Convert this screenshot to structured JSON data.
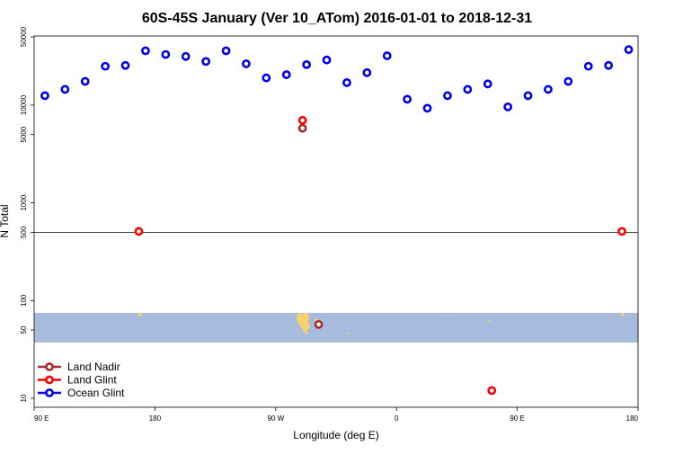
{
  "chart_data": {
    "type": "scatter",
    "title": "60S-45S January (Ver 10_ATom)   2016-01-01 to 2018-12-31",
    "xlabel": "Longitude (deg E)",
    "ylabel": "N Total",
    "x_ticks": [
      {
        "value": 90,
        "label": "90 E"
      },
      {
        "value": 180,
        "label": "180"
      },
      {
        "value": 270,
        "label": "90 W"
      },
      {
        "value": 360,
        "label": "0"
      },
      {
        "value": 450,
        "label": "90 E"
      },
      {
        "value": 540,
        "label": "180"
      }
    ],
    "y_ticks": [
      10,
      50,
      100,
      500,
      1000,
      5000,
      10000,
      50000
    ],
    "xlim": [
      90,
      540
    ],
    "ylim": [
      8,
      55000
    ],
    "y_scale": "log",
    "reference_line_y": 500,
    "latitude_band": {
      "color": "#a7bcdc",
      "land_color": "#f7d36b"
    },
    "legend_position": "bottom-left",
    "series": [
      {
        "name": "Land Nadir",
        "color": "#a52a2a",
        "points": [
          [
            290,
            5800
          ],
          [
            302,
            57
          ]
        ]
      },
      {
        "name": "Land Glint",
        "color": "#ff0000",
        "points": [
          [
            168,
            510
          ],
          [
            290,
            7000
          ],
          [
            431,
            12
          ],
          [
            528,
            510
          ]
        ]
      },
      {
        "name": "Ocean Glint",
        "color": "#0000ee",
        "points": [
          [
            98,
            12500
          ],
          [
            113,
            14500
          ],
          [
            128,
            17500
          ],
          [
            143,
            25000
          ],
          [
            158,
            25500
          ],
          [
            173,
            36000
          ],
          [
            188,
            33000
          ],
          [
            203,
            31500
          ],
          [
            218,
            28000
          ],
          [
            233,
            36000
          ],
          [
            248,
            26500
          ],
          [
            263,
            19000
          ],
          [
            278,
            20500
          ],
          [
            293,
            26000
          ],
          [
            308,
            29000
          ],
          [
            323,
            17000
          ],
          [
            338,
            21500
          ],
          [
            353,
            32000
          ],
          [
            368,
            11500
          ],
          [
            383,
            9300
          ],
          [
            398,
            12500
          ],
          [
            413,
            14500
          ],
          [
            428,
            16500
          ],
          [
            443,
            9600
          ],
          [
            458,
            12500
          ],
          [
            473,
            14500
          ],
          [
            488,
            17500
          ],
          [
            503,
            25000
          ],
          [
            518,
            25500
          ],
          [
            533,
            37000
          ]
        ]
      }
    ]
  }
}
